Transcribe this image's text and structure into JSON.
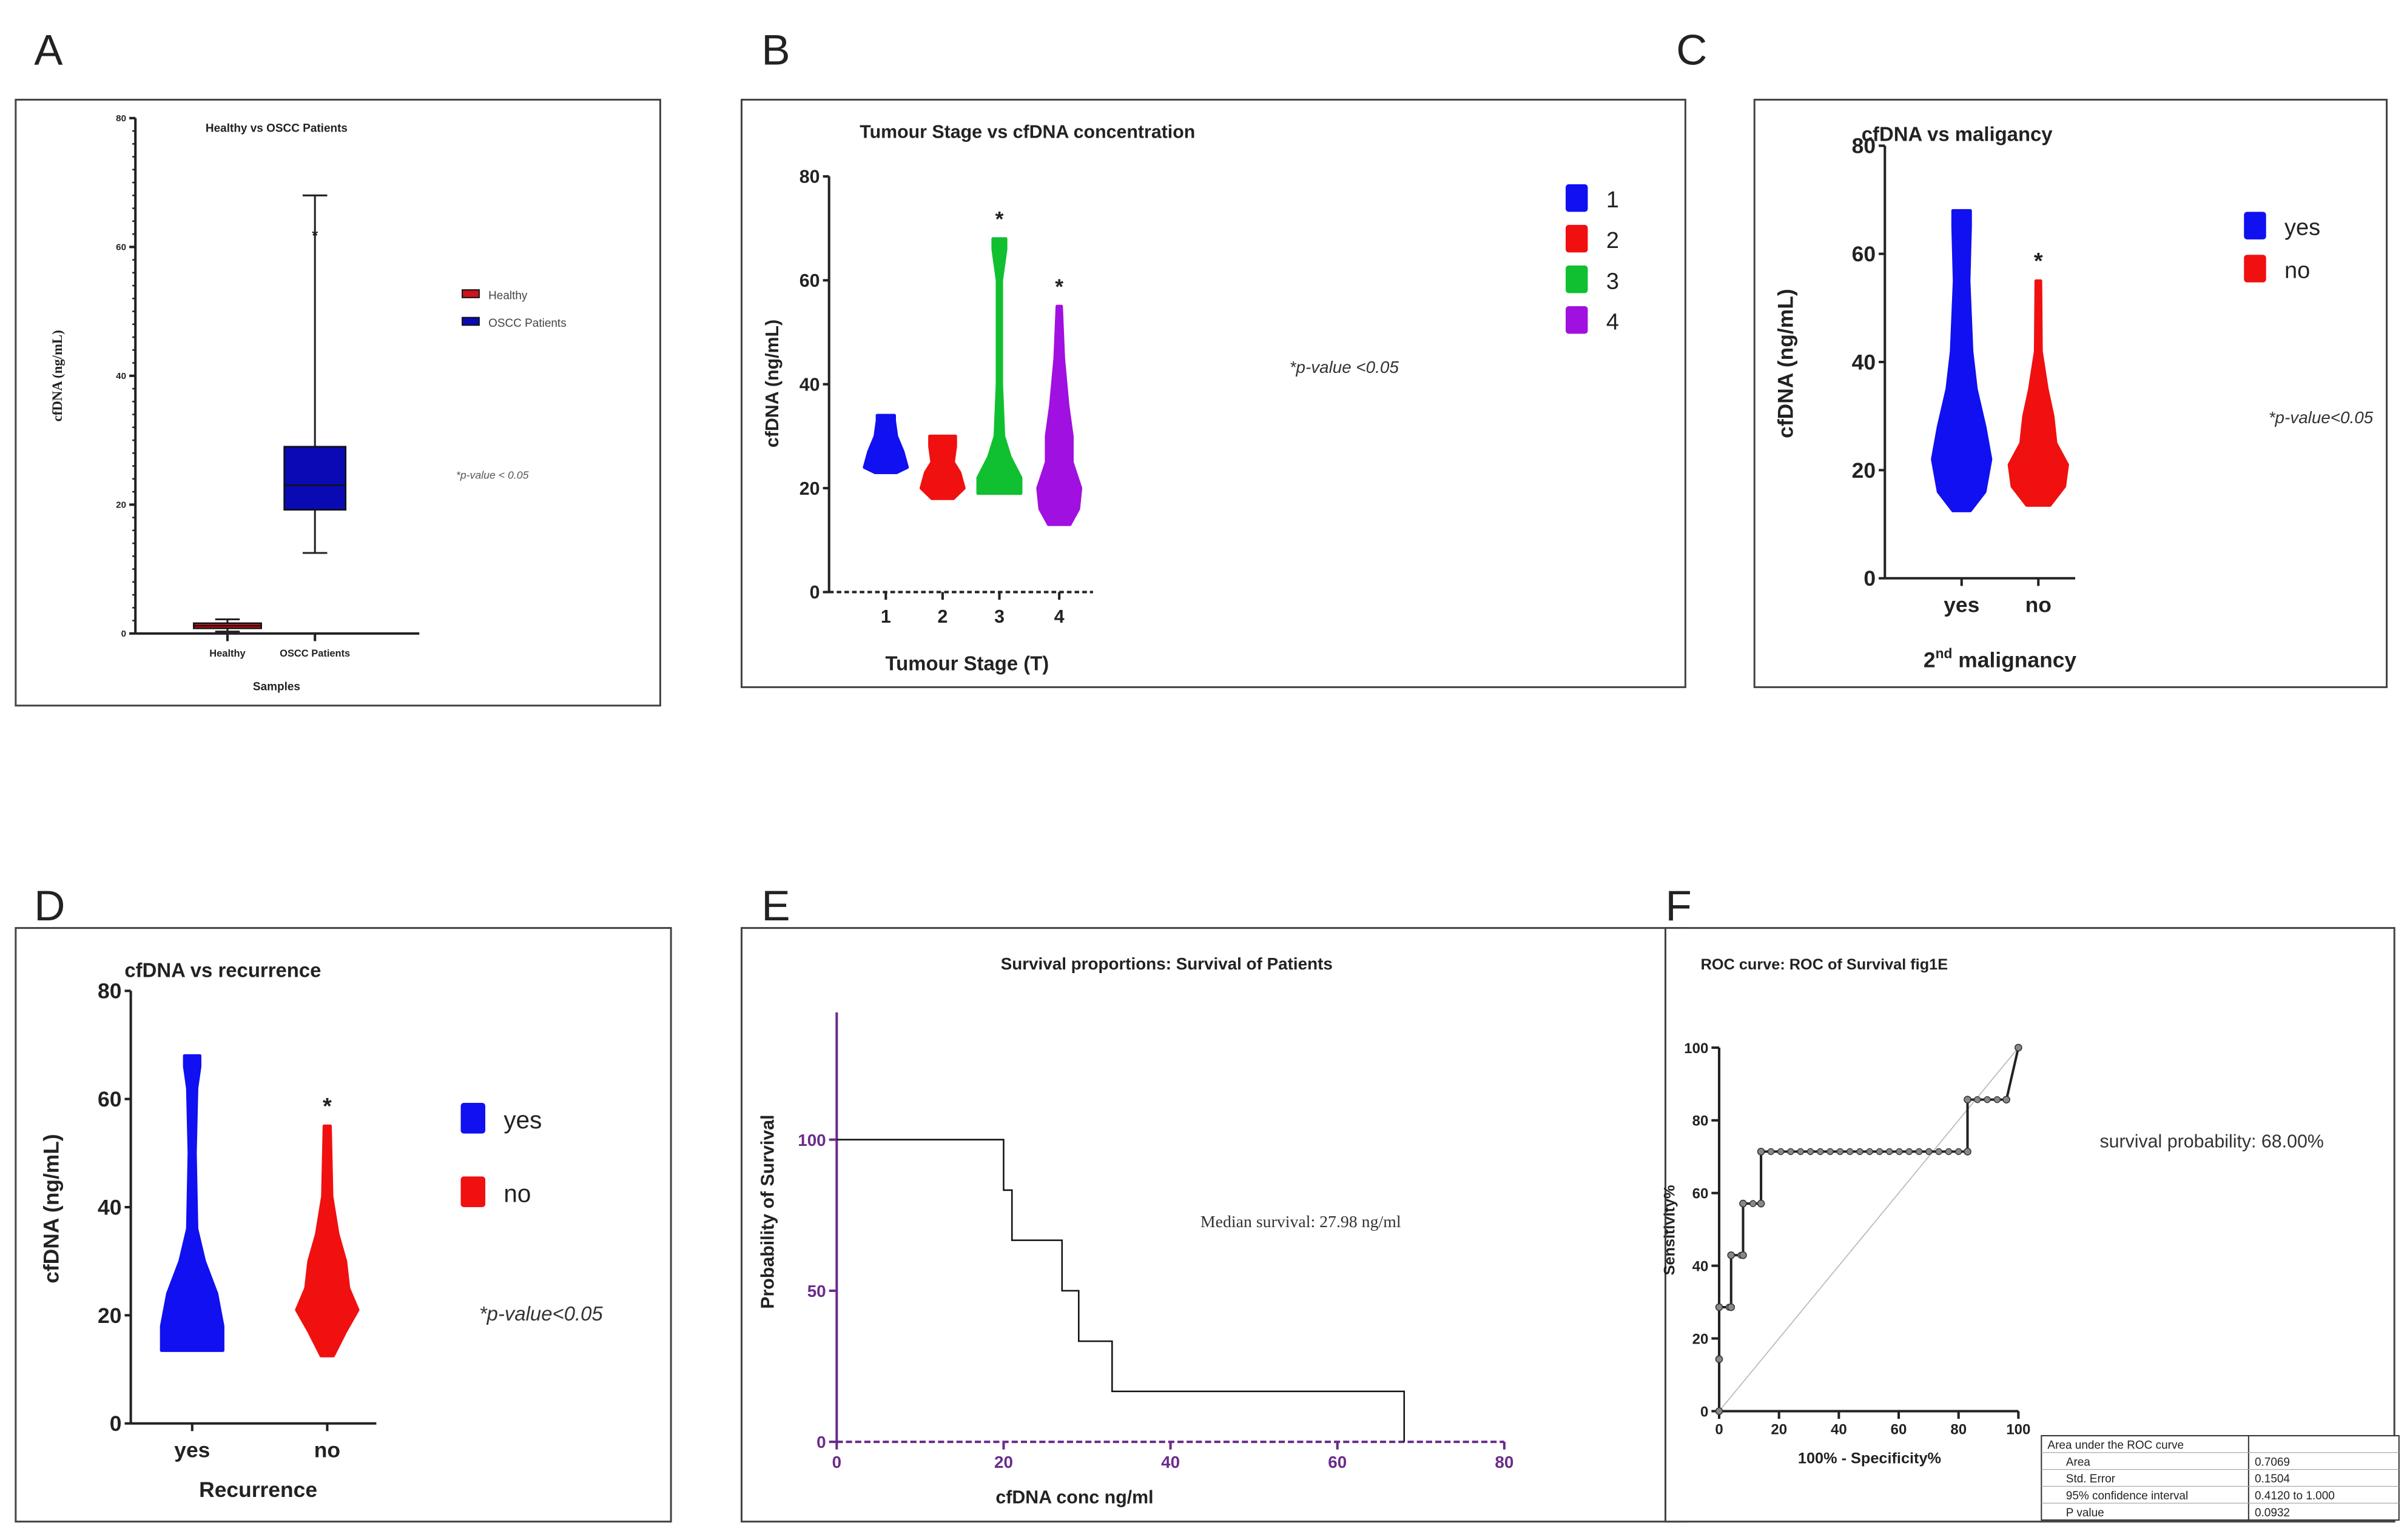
{
  "chart_data": [
    {
      "panel": "A",
      "type": "box",
      "title": "Healthy vs OSCC Patients",
      "xlabel": "Samples",
      "ylabel": "cfDNA (ng/mL)",
      "ylim": [
        0,
        80
      ],
      "yticks": [
        "0",
        "20",
        "40",
        "60",
        "80"
      ],
      "categories": [
        "Healthy",
        "OSCC Patients"
      ],
      "boxes": [
        {
          "name": "Healthy",
          "min": 0.3,
          "q1": 0.8,
          "median": 1.2,
          "q3": 1.6,
          "max": 2.2,
          "color": "#d0131b"
        },
        {
          "name": "OSCC Patients",
          "min": 12.5,
          "q1": 19.2,
          "median": 23,
          "q3": 29,
          "max": 68,
          "color": "#0a0ab4"
        }
      ],
      "legend": [
        "Healthy",
        "OSCC Patients"
      ],
      "legend_position": "right",
      "annotation": "*p-value < 0.05",
      "star": "*"
    },
    {
      "panel": "B",
      "type": "violin",
      "title": "Tumour Stage vs cfDNA concentration",
      "xlabel": "Tumour Stage (T)",
      "ylabel": "cfDNA (ng/mL)",
      "ylim": [
        0,
        80
      ],
      "yticks": [
        "0",
        "20",
        "40",
        "60",
        "80"
      ],
      "categories": [
        "1",
        "2",
        "3",
        "4"
      ],
      "series": [
        {
          "name": "1",
          "color": "#1010f0",
          "min": 23,
          "max": 34,
          "profile": [
            [
              23,
              0.5
            ],
            [
              24,
              1
            ],
            [
              27,
              0.8
            ],
            [
              30,
              0.5
            ],
            [
              33,
              0.4
            ],
            [
              34,
              0.4
            ]
          ],
          "star": false
        },
        {
          "name": "2",
          "color": "#f01010",
          "min": 18,
          "max": 30,
          "profile": [
            [
              18,
              0.5
            ],
            [
              20,
              1
            ],
            [
              23,
              0.8
            ],
            [
              25,
              0.5
            ],
            [
              28,
              0.6
            ],
            [
              30,
              0.6
            ]
          ],
          "star": false
        },
        {
          "name": "3",
          "color": "#10c030",
          "min": 19,
          "max": 68,
          "profile": [
            [
              19,
              1
            ],
            [
              22,
              1
            ],
            [
              26,
              0.5
            ],
            [
              30,
              0.2
            ],
            [
              40,
              0.1
            ],
            [
              60,
              0.1
            ],
            [
              66,
              0.3
            ],
            [
              68,
              0.3
            ]
          ],
          "star": true
        },
        {
          "name": "4",
          "color": "#a010e0",
          "min": 13,
          "max": 55,
          "profile": [
            [
              13,
              0.5
            ],
            [
              16,
              0.9
            ],
            [
              20,
              1
            ],
            [
              25,
              0.6
            ],
            [
              30,
              0.6
            ],
            [
              36,
              0.4
            ],
            [
              45,
              0.2
            ],
            [
              55,
              0.1
            ]
          ],
          "star": true
        }
      ],
      "legend": [
        "1",
        "2",
        "3",
        "4"
      ],
      "legend_position": "right",
      "annotation": "*p-value <0.05",
      "star": "*"
    },
    {
      "panel": "C",
      "type": "violin",
      "title": "cfDNA vs maligancy",
      "xlabel_main": "2",
      "xlabel_sup": "nd",
      "xlabel_rest": " malignancy",
      "ylabel": "cfDNA (ng/mL)",
      "ylim": [
        0,
        80
      ],
      "yticks": [
        "0",
        "20",
        "40",
        "60",
        "80"
      ],
      "categories": [
        "yes",
        "no"
      ],
      "series": [
        {
          "name": "yes",
          "color": "#1010f0",
          "min": 12.5,
          "max": 68,
          "profile": [
            [
              12.5,
              0.3
            ],
            [
              16,
              0.8
            ],
            [
              22,
              1
            ],
            [
              28,
              0.8
            ],
            [
              35,
              0.5
            ],
            [
              42,
              0.35
            ],
            [
              55,
              0.25
            ],
            [
              65,
              0.3
            ],
            [
              68,
              0.3
            ]
          ],
          "star": false
        },
        {
          "name": "no",
          "color": "#f01010",
          "min": 13.5,
          "max": 55,
          "profile": [
            [
              13.5,
              0.4
            ],
            [
              17,
              0.9
            ],
            [
              21,
              1
            ],
            [
              25,
              0.6
            ],
            [
              30,
              0.5
            ],
            [
              35,
              0.3
            ],
            [
              42,
              0.1
            ],
            [
              55,
              0.08
            ]
          ],
          "star": true
        }
      ],
      "legend": [
        "yes",
        "no"
      ],
      "legend_position": "right",
      "annotation": "*p-value<0.05",
      "star": "*"
    },
    {
      "panel": "D",
      "type": "violin",
      "title": "cfDNA vs recurrence",
      "xlabel": "Recurrence",
      "ylabel": "cfDNA (ng/mL)",
      "ylim": [
        0,
        80
      ],
      "yticks": [
        "0",
        "20",
        "40",
        "60",
        "80"
      ],
      "categories": [
        "yes",
        "no"
      ],
      "series": [
        {
          "name": "yes",
          "color": "#1010f0",
          "min": 13.5,
          "max": 68,
          "profile": [
            [
              13.5,
              1
            ],
            [
              18,
              1
            ],
            [
              24,
              0.8
            ],
            [
              30,
              0.4
            ],
            [
              36,
              0.15
            ],
            [
              50,
              0.1
            ],
            [
              62,
              0.15
            ],
            [
              66,
              0.25
            ],
            [
              68,
              0.25
            ]
          ],
          "star": false
        },
        {
          "name": "no",
          "color": "#f01010",
          "min": 12.5,
          "max": 55,
          "profile": [
            [
              12.5,
              0.2
            ],
            [
              17,
              0.6
            ],
            [
              21,
              1
            ],
            [
              25,
              0.7
            ],
            [
              30,
              0.6
            ],
            [
              35,
              0.35
            ],
            [
              42,
              0.15
            ],
            [
              55,
              0.1
            ]
          ],
          "star": true
        }
      ],
      "legend": [
        "yes",
        "no"
      ],
      "legend_position": "right",
      "annotation": "*p-value<0.05",
      "star": "*"
    },
    {
      "panel": "E",
      "type": "line",
      "subtype": "survival-step",
      "title": "Survival proportions: Survival of Patients",
      "xlabel": "cfDNA conc ng/ml",
      "ylabel": "Probability of Survival",
      "xlim": [
        0,
        80
      ],
      "ylim": [
        0,
        100
      ],
      "xticks": [
        "0",
        "20",
        "40",
        "60",
        "80"
      ],
      "yticks": [
        "0",
        "50",
        "100"
      ],
      "x": [
        0,
        20,
        21,
        27,
        29,
        33,
        68
      ],
      "y": [
        100,
        83.3,
        66.7,
        50,
        33.3,
        16.7,
        0
      ],
      "axis_color": "#6a2c8a",
      "annotation": "Median survival: 27.98 ng/ml"
    },
    {
      "panel": "F",
      "type": "line",
      "subtype": "roc",
      "title": "ROC curve: ROC of Survival fig1E",
      "xlabel": "100% - Specificity%",
      "ylabel": "Sensitivity%",
      "xlim": [
        0,
        100
      ],
      "ylim": [
        0,
        100
      ],
      "xticks": [
        "0",
        "20",
        "40",
        "60",
        "80",
        "100"
      ],
      "yticks": [
        "0",
        "20",
        "40",
        "60",
        "80",
        "100"
      ],
      "x": [
        0,
        0,
        0,
        4,
        4,
        8,
        8,
        14,
        14,
        83,
        83,
        96,
        100
      ],
      "y": [
        0,
        14.3,
        28.6,
        28.6,
        42.9,
        42.9,
        57.1,
        57.1,
        71.4,
        71.4,
        85.7,
        85.7,
        100
      ],
      "annotation": "survival probability: 68.00%",
      "table": {
        "header": "Area under the ROC curve",
        "rows": [
          [
            "Area",
            "0.7069"
          ],
          [
            "Std. Error",
            "0.1504"
          ],
          [
            "95% confidence interval",
            "0.4120 to 1.000"
          ],
          [
            "P value",
            "0.0932"
          ]
        ]
      }
    }
  ],
  "panel_labels": [
    "A",
    "B",
    "C",
    "D",
    "E",
    "F"
  ]
}
